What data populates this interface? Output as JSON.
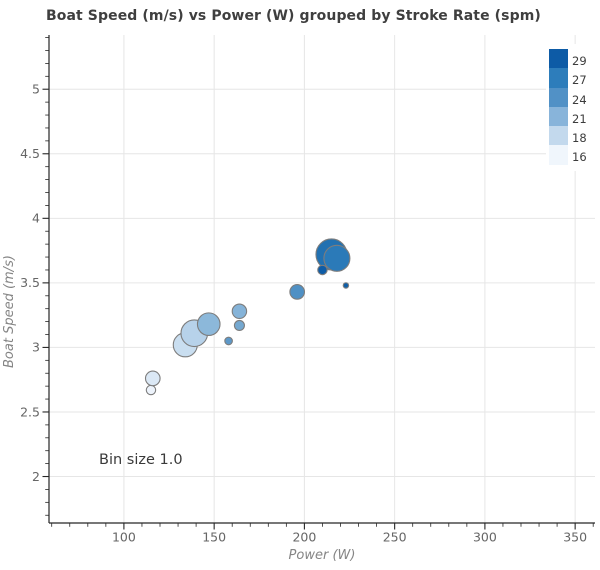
{
  "chart_data": {
    "type": "scatter",
    "title": "Boat Speed (m/s) vs Power (W) grouped by Stroke Rate (spm)",
    "xlabel": "Power (W)",
    "ylabel": "Boat Speed (m/s)",
    "annotation": "Bin size 1.0",
    "xlim": [
      58.5,
      361
    ],
    "ylim": [
      1.64,
      5.42
    ],
    "x_ticks": [
      100,
      150,
      200,
      250,
      300,
      350
    ],
    "y_ticks": [
      2,
      2.5,
      3,
      3.5,
      4,
      4.5,
      5
    ],
    "x_minor_step": 10,
    "y_minor_step": 0.1,
    "grid": true,
    "legend_position": "top-right",
    "legend_entries": [
      {
        "label": "29",
        "color": "#0d5ba6"
      },
      {
        "label": "27",
        "color": "#2d7dbb"
      },
      {
        "label": "24",
        "color": "#5191c6"
      },
      {
        "label": "21",
        "color": "#88b4da"
      },
      {
        "label": "18",
        "color": "#c3d9ed"
      },
      {
        "label": "16",
        "color": "#f0f6fc"
      }
    ],
    "size_encoding": "sample count per stroke-rate bin (bin size 1.0 spm)",
    "color_encoding": "stroke rate (spm), Blues colormap",
    "points": [
      {
        "stroke_rate": 16,
        "power_w": 115,
        "speed_ms": 2.67,
        "radius_px": 4.7,
        "color": "#edf3fb"
      },
      {
        "stroke_rate": 17,
        "power_w": 116,
        "speed_ms": 2.76,
        "radius_px": 7.3,
        "color": "#dbe8f5"
      },
      {
        "stroke_rate": 18,
        "power_w": 134,
        "speed_ms": 3.02,
        "radius_px": 12.0,
        "color": "#c9def0"
      },
      {
        "stroke_rate": 19,
        "power_w": 139,
        "speed_ms": 3.11,
        "radius_px": 13.3,
        "color": "#b7d2ea"
      },
      {
        "stroke_rate": 20,
        "power_w": 147,
        "speed_ms": 3.18,
        "radius_px": 11.3,
        "color": "#8cb8da"
      },
      {
        "stroke_rate": 21,
        "power_w": 164,
        "speed_ms": 3.28,
        "radius_px": 7.2,
        "color": "#85b3d8"
      },
      {
        "stroke_rate": 22,
        "power_w": 164,
        "speed_ms": 3.17,
        "radius_px": 5.0,
        "color": "#74a8d0"
      },
      {
        "stroke_rate": 23,
        "power_w": 158,
        "speed_ms": 3.05,
        "radius_px": 3.8,
        "color": "#5d98c8"
      },
      {
        "stroke_rate": 24,
        "power_w": 196,
        "speed_ms": 3.43,
        "radius_px": 7.3,
        "color": "#4f90c4"
      },
      {
        "stroke_rate": 27,
        "power_w": 215,
        "speed_ms": 3.72,
        "radius_px": 15.5,
        "color": "#2271b1"
      },
      {
        "stroke_rate": 28,
        "power_w": 218,
        "speed_ms": 3.69,
        "radius_px": 13.0,
        "color": "#2b7ab8"
      },
      {
        "stroke_rate": 29,
        "power_w": 210,
        "speed_ms": 3.6,
        "radius_px": 4.7,
        "color": "#0e5ca6"
      },
      {
        "stroke_rate": 30,
        "power_w": 223,
        "speed_ms": 3.48,
        "radius_px": 2.7,
        "color": "#0f5fa8"
      }
    ]
  },
  "colors": {
    "background": "#ffffff",
    "grid": "#e6e6e6",
    "spine": "#262626",
    "tick": "#262626",
    "tick_label": "#666666",
    "title": "#3f3f3f",
    "axis_label": "#858585",
    "annotation": "#3a3a3a",
    "legend_label": "#3c3c3c",
    "point_stroke": "#7d7d7d"
  }
}
